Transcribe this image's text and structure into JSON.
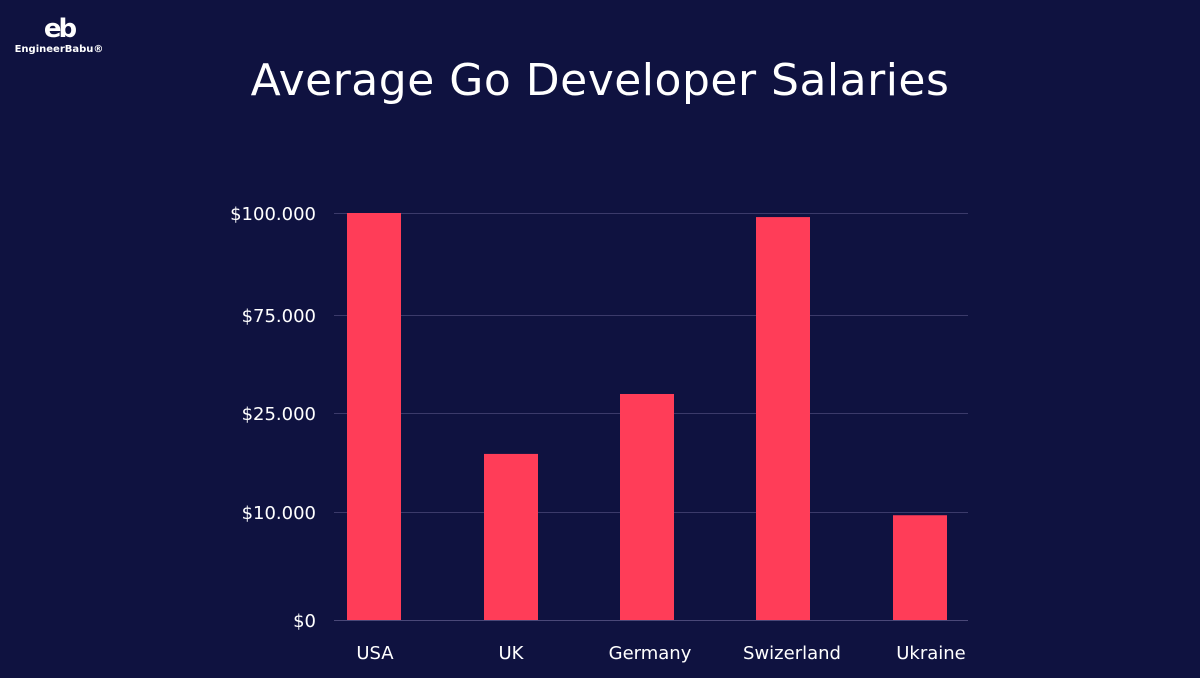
{
  "logo": {
    "mark": "eb",
    "brand": "EngineerBabu®"
  },
  "chart_data": {
    "type": "bar",
    "title": "Average Go Developer Salaries",
    "categories": [
      "USA",
      "UK",
      "Germany",
      "Swizerland",
      "Ukraine"
    ],
    "values": [
      100000,
      18800,
      34700,
      99000,
      9700
    ],
    "y_ticks": [
      0,
      10000,
      25000,
      75000,
      100000
    ],
    "y_tick_labels": [
      "$0",
      "$10.000",
      "$25.000",
      "$75.000",
      "$100.000"
    ],
    "y_scale": "non-uniform (ticks evenly spaced)",
    "ylim": [
      0,
      100000
    ],
    "grid": true,
    "legend": "none",
    "colors": {
      "background": "#0f1240",
      "bar": "#ff3d58",
      "grid": "#3b3a6a",
      "text": "#ffffff"
    }
  }
}
